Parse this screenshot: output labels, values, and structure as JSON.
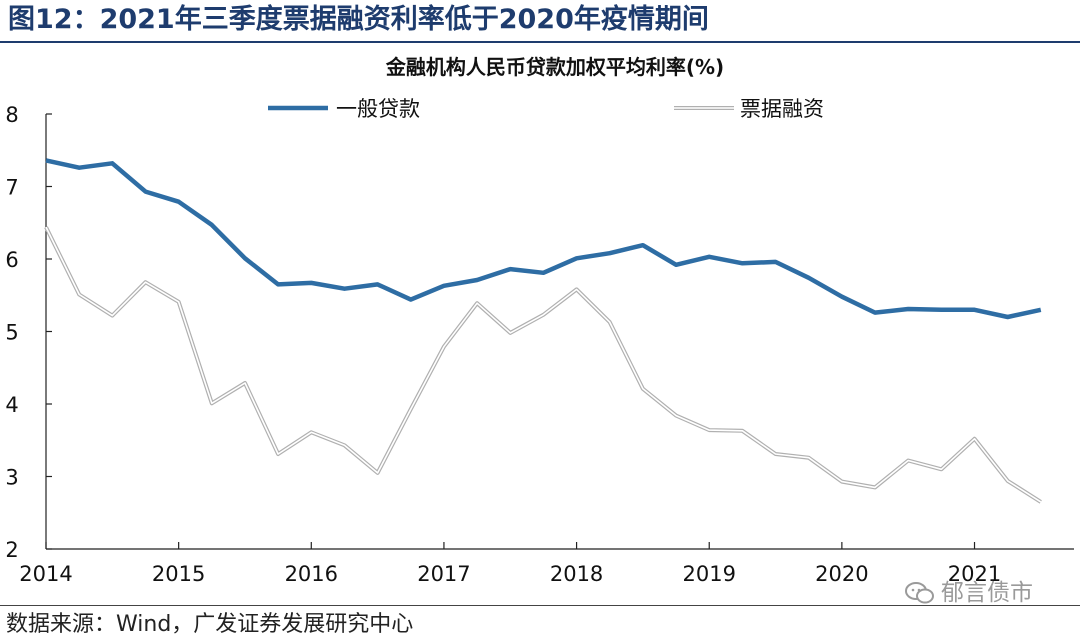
{
  "header": {
    "title": "图12：2021年三季度票据融资利率低于2020年疫情期间"
  },
  "footer": {
    "source": "数据来源：Wind，广发证券发展研究中心",
    "watermark": "郁言债市"
  },
  "chart_data": {
    "type": "line",
    "title": "金融机构人民币贷款加权平均利率(%)",
    "xlabel": "",
    "ylabel": "",
    "ylim": [
      2,
      8
    ],
    "yticks": [
      2,
      3,
      4,
      5,
      6,
      7,
      8
    ],
    "xlim": [
      2014.0,
      2021.75
    ],
    "xticks": [
      2014,
      2015,
      2016,
      2017,
      2018,
      2019,
      2020,
      2021
    ],
    "xtick_labels": [
      "2014",
      "2015",
      "2016",
      "2017",
      "2018",
      "2019",
      "2020",
      "2021"
    ],
    "grid": false,
    "legend_position": "top",
    "x": [
      2014.0,
      2014.25,
      2014.5,
      2014.75,
      2015.0,
      2015.25,
      2015.5,
      2015.75,
      2016.0,
      2016.25,
      2016.5,
      2016.75,
      2017.0,
      2017.25,
      2017.5,
      2017.75,
      2018.0,
      2018.25,
      2018.5,
      2018.75,
      2019.0,
      2019.25,
      2019.5,
      2019.75,
      2020.0,
      2020.25,
      2020.5,
      2020.75,
      2021.0,
      2021.25,
      2021.5
    ],
    "series": [
      {
        "name": "一般贷款",
        "color": "#2e6da4",
        "values": [
          7.36,
          7.26,
          7.32,
          6.93,
          6.79,
          6.47,
          6.01,
          5.65,
          5.67,
          5.59,
          5.65,
          5.44,
          5.63,
          5.71,
          5.86,
          5.81,
          6.01,
          6.08,
          6.19,
          5.92,
          6.03,
          5.94,
          5.96,
          5.74,
          5.48,
          5.26,
          5.31,
          5.3,
          5.3,
          5.2,
          5.3
        ]
      },
      {
        "name": "票据融资",
        "color": "#c8c8c8",
        "values": [
          6.44,
          5.51,
          5.22,
          5.68,
          5.41,
          4.01,
          4.29,
          3.31,
          3.61,
          3.43,
          3.05,
          3.93,
          4.79,
          5.39,
          4.98,
          5.23,
          5.58,
          5.13,
          4.21,
          3.84,
          3.64,
          3.63,
          3.31,
          3.26,
          2.93,
          2.85,
          3.22,
          3.1,
          3.52,
          2.94,
          2.65
        ]
      }
    ]
  }
}
